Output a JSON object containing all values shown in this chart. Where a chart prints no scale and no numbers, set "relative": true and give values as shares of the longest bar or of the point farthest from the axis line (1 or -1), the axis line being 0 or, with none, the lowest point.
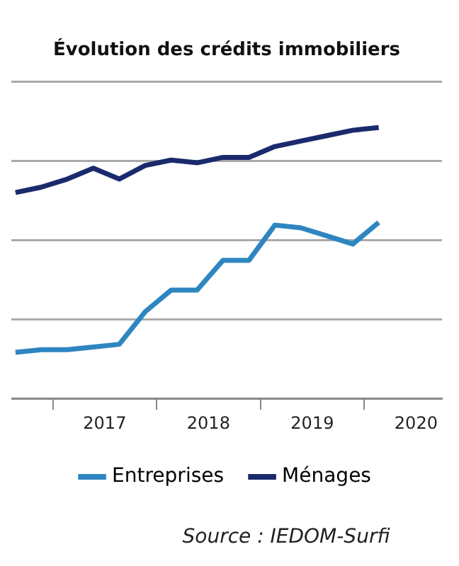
{
  "chart_data": {
    "type": "line",
    "title": "Évolution des crédits immobiliers",
    "relative": true,
    "x": [
      2016.64,
      2016.89,
      2017.14,
      2017.39,
      2017.64,
      2017.89,
      2018.14,
      2018.39,
      2018.64,
      2018.89,
      2019.14,
      2019.39,
      2019.64,
      2019.89,
      2020.14
    ],
    "xlim": [
      2016.6,
      2020.75
    ],
    "xticks": [
      {
        "value": 2017,
        "label": null
      },
      {
        "value": 2017.5,
        "label": "2017"
      },
      {
        "value": 2018,
        "label": null
      },
      {
        "value": 2018.5,
        "label": "2018"
      },
      {
        "value": 2019,
        "label": null
      },
      {
        "value": 2019.5,
        "label": "2019"
      },
      {
        "value": 2020,
        "label": null
      },
      {
        "value": 2020.5,
        "label": "2020"
      }
    ],
    "series": [
      {
        "name": "Entreprises",
        "color": "#2e86c1",
        "values": [
          0.17,
          0.18,
          0.18,
          0.19,
          0.2,
          0.32,
          0.4,
          0.4,
          0.51,
          0.51,
          0.64,
          0.63,
          0.6,
          0.57,
          0.65
        ]
      },
      {
        "name": "Ménages",
        "color": "#1a2a6c",
        "values": [
          0.76,
          0.78,
          0.81,
          0.85,
          0.81,
          0.86,
          0.88,
          0.87,
          0.89,
          0.89,
          0.93,
          0.95,
          0.97,
          0.99,
          1.0
        ]
      }
    ],
    "grid": "y",
    "legend": "bottom",
    "marker": "none",
    "line_style": "solid",
    "annotations": [
      "Source : IEDOM-Surfi"
    ]
  }
}
